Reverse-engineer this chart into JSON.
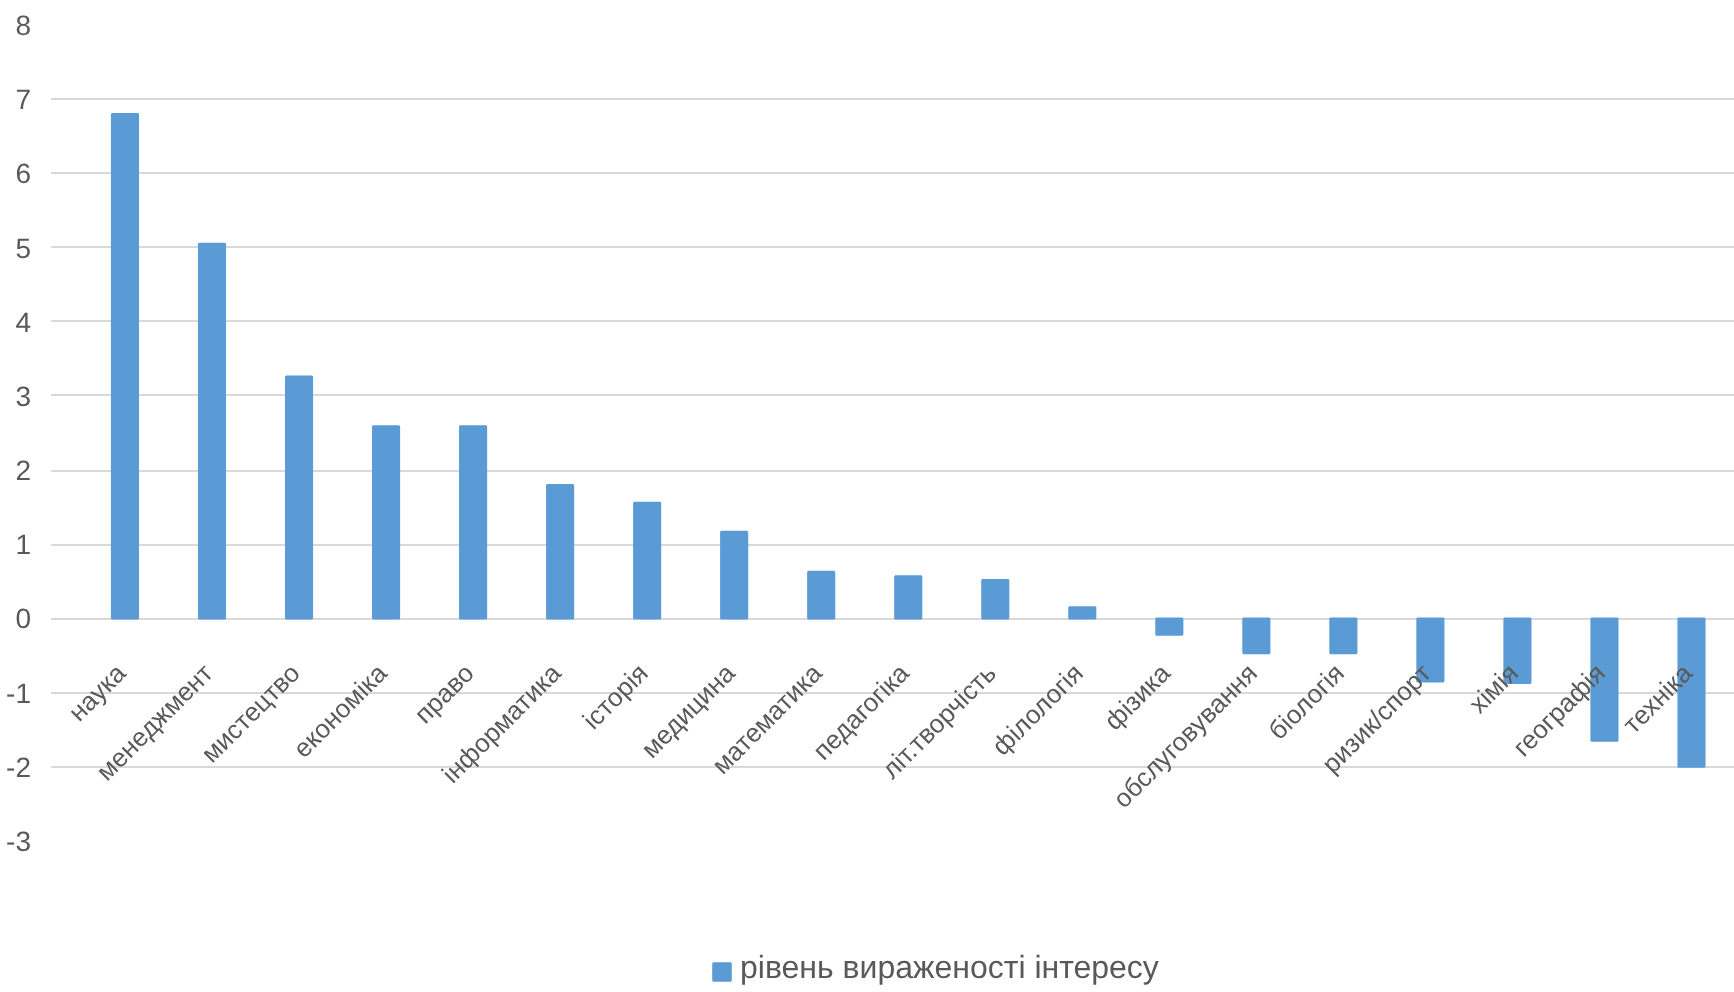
{
  "chart_data": {
    "type": "bar",
    "categories": [
      "наука",
      "менеджмент",
      "мистецтво",
      "економіка",
      "право",
      "інформатика",
      "історія",
      "медицина",
      "математика",
      "педагогіка",
      "літ.творчість",
      "філологія",
      "фізика",
      "обслуговування",
      "біологія",
      "ризик/спорт",
      "хімія",
      "географія",
      "техніка"
    ],
    "series": [
      {
        "name": "рівень вираженості інтересу",
        "color": "#5b9bd5",
        "values": [
          6.8,
          5.05,
          3.26,
          2.59,
          2.59,
          1.8,
          1.56,
          1.17,
          0.63,
          0.57,
          0.52,
          0.15,
          -0.22,
          -0.47,
          -0.47,
          -0.85,
          -0.87,
          -1.65,
          -2.0
        ]
      }
    ],
    "ylim": [
      -3,
      8
    ],
    "yticks": [
      -3,
      -2,
      -1,
      0,
      1,
      2,
      3,
      4,
      5,
      6,
      7,
      8
    ],
    "grid": "y",
    "legend": "bottom"
  }
}
